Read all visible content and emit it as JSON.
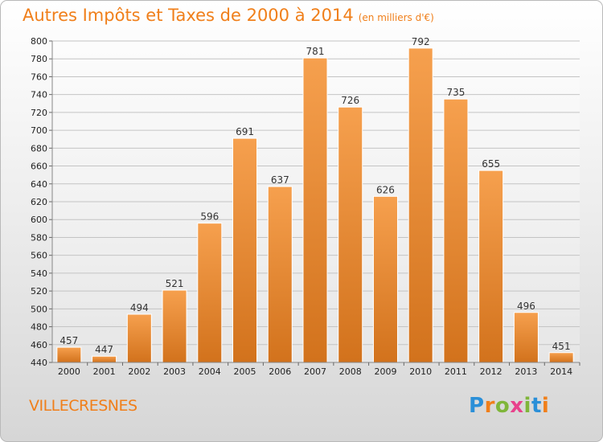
{
  "title": "Autres Impôts et Taxes de 2000 à 2014",
  "subtitle": "(en milliers d'€)",
  "commune": "VILLECRESNES",
  "logo": {
    "text": "Proxiti",
    "letter_colors": [
      "#2a8fd8",
      "#f07f1a",
      "#7fb63a",
      "#e8428c",
      "#7fb63a",
      "#2a8fd8",
      "#f07f1a"
    ]
  },
  "colors": {
    "accent": "#f07f1a",
    "bar_top": "#f6a04e",
    "bar_bottom": "#d2721c"
  },
  "chart_data": {
    "type": "bar",
    "title": "Autres Impôts et Taxes de 2000 à 2014",
    "subtitle": "(en milliers d'€)",
    "categories": [
      "2000",
      "2001",
      "2002",
      "2003",
      "2004",
      "2005",
      "2006",
      "2007",
      "2008",
      "2009",
      "2010",
      "2011",
      "2012",
      "2013",
      "2014"
    ],
    "values": [
      457,
      447,
      494,
      521,
      596,
      691,
      637,
      781,
      726,
      626,
      792,
      735,
      655,
      496,
      451
    ],
    "ylim": [
      440,
      800
    ],
    "ytick_step": 20,
    "yticks": [
      "440",
      "460",
      "480",
      "500",
      "520",
      "540",
      "560",
      "580",
      "600",
      "620",
      "640",
      "660",
      "680",
      "700",
      "720",
      "740",
      "760",
      "780",
      "800"
    ],
    "grid": true,
    "data_labels": true
  }
}
